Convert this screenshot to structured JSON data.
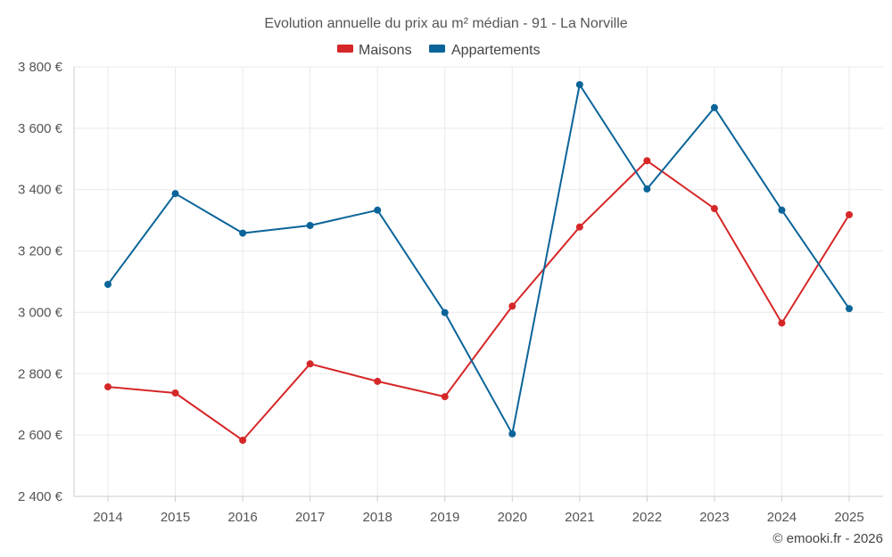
{
  "chart_data": {
    "type": "line",
    "title": "Evolution annuelle du prix au m² médian - 91 - La Norville",
    "categories": [
      "2014",
      "2015",
      "2016",
      "2017",
      "2018",
      "2019",
      "2020",
      "2021",
      "2022",
      "2023",
      "2024",
      "2025"
    ],
    "y_ticks": [
      2400,
      2600,
      2800,
      3000,
      3200,
      3400,
      3600,
      3800
    ],
    "y_tick_labels": [
      "2 400 €",
      "2 600 €",
      "2 800 €",
      "3 000 €",
      "3 200 €",
      "3 400 €",
      "3 600 €",
      "3 800 €"
    ],
    "ylim": [
      2400,
      3800
    ],
    "legend_position": "top-center",
    "grid": true,
    "series": [
      {
        "name": "Maisons",
        "color": "#d62728",
        "values": [
          2757,
          2737,
          2583,
          2832,
          2775,
          2725,
          3020,
          3278,
          3494,
          3338,
          2965,
          3318
        ]
      },
      {
        "name": "Appartements",
        "color": "#0b6499",
        "values": [
          3091,
          3387,
          3258,
          3283,
          3333,
          2999,
          2604,
          3742,
          3402,
          3667,
          3333,
          3012
        ]
      }
    ]
  },
  "footer": {
    "credit": "© emooki.fr - 2026"
  }
}
